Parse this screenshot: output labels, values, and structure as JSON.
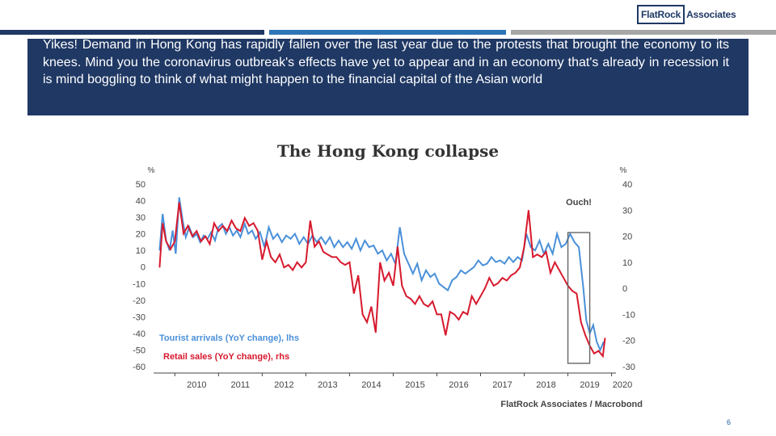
{
  "colors": {
    "bar_1": "#1f3864",
    "bar_2": "#2e75b6",
    "bar_3": "#a6a6a6",
    "banner": "#1f3864",
    "tourist_series": "#4a90d9",
    "retail_series": "#d7192d"
  },
  "logo": {
    "boxed_text": "FlatRock",
    "rest_text": "Associates"
  },
  "banner": {
    "text": "Yikes! Demand in Hong Kong has rapidly fallen over the last year due to the protests that brought the economy to its knees. Mind you the coronavirus outbreak's effects have yet to appear and in an economy that's already in recession it is mind boggling to think of what might happen to the financial capital of the Asian world"
  },
  "page_number": "6",
  "chart_data": {
    "type": "line",
    "title": "The Hong Kong collapse",
    "source": "FlatRock Associates / Macrobond",
    "left_unit": "%",
    "right_unit": "%",
    "left_axis": {
      "ticks": [
        50,
        40,
        30,
        20,
        10,
        0,
        -10,
        -20,
        -30,
        -40,
        -50,
        -60
      ],
      "ylim": [
        -60,
        50
      ]
    },
    "right_axis": {
      "ticks": [
        40,
        30,
        20,
        10,
        0,
        -10,
        -20,
        -30
      ],
      "ylim": [
        -30,
        40
      ]
    },
    "x_axis": {
      "ticks": [
        "2010",
        "2011",
        "2012",
        "2013",
        "2014",
        "2015",
        "2016",
        "2017",
        "2018",
        "2019",
        "2020"
      ],
      "xlim": [
        2009.55,
        2020.1
      ]
    },
    "legend_placement": "bottom-left",
    "annotation": {
      "text": "Ouch!",
      "x_range": [
        2019.0,
        2019.5
      ]
    },
    "series": [
      {
        "name": "Tourist arrivals (YoY change), lhs",
        "axis": "left",
        "points": [
          [
            2009.65,
            10
          ],
          [
            2009.72,
            32
          ],
          [
            2009.8,
            16
          ],
          [
            2009.88,
            10
          ],
          [
            2009.95,
            22
          ],
          [
            2010.02,
            8
          ],
          [
            2010.1,
            42
          ],
          [
            2010.18,
            28
          ],
          [
            2010.25,
            18
          ],
          [
            2010.33,
            24
          ],
          [
            2010.42,
            18
          ],
          [
            2010.5,
            20
          ],
          [
            2010.58,
            15
          ],
          [
            2010.66,
            19
          ],
          [
            2010.75,
            17
          ],
          [
            2010.83,
            21
          ],
          [
            2010.92,
            16
          ],
          [
            2011.0,
            24
          ],
          [
            2011.08,
            26
          ],
          [
            2011.17,
            20
          ],
          [
            2011.25,
            24
          ],
          [
            2011.33,
            19
          ],
          [
            2011.42,
            22
          ],
          [
            2011.5,
            18
          ],
          [
            2011.6,
            26
          ],
          [
            2011.68,
            20
          ],
          [
            2011.77,
            22
          ],
          [
            2011.85,
            17
          ],
          [
            2011.95,
            21
          ],
          [
            2012.05,
            12
          ],
          [
            2012.15,
            24
          ],
          [
            2012.25,
            17
          ],
          [
            2012.35,
            20
          ],
          [
            2012.45,
            15
          ],
          [
            2012.55,
            19
          ],
          [
            2012.65,
            17
          ],
          [
            2012.75,
            20
          ],
          [
            2012.85,
            14
          ],
          [
            2012.95,
            18
          ],
          [
            2013.05,
            14
          ],
          [
            2013.15,
            19
          ],
          [
            2013.25,
            15
          ],
          [
            2013.35,
            18
          ],
          [
            2013.45,
            14
          ],
          [
            2013.55,
            18
          ],
          [
            2013.65,
            12
          ],
          [
            2013.75,
            16
          ],
          [
            2013.85,
            12
          ],
          [
            2013.95,
            15
          ],
          [
            2014.05,
            11
          ],
          [
            2014.15,
            17
          ],
          [
            2014.25,
            10
          ],
          [
            2014.35,
            16
          ],
          [
            2014.45,
            12
          ],
          [
            2014.55,
            13
          ],
          [
            2014.65,
            8
          ],
          [
            2014.75,
            10
          ],
          [
            2014.85,
            4
          ],
          [
            2014.95,
            8
          ],
          [
            2015.05,
            2
          ],
          [
            2015.15,
            24
          ],
          [
            2015.25,
            8
          ],
          [
            2015.35,
            2
          ],
          [
            2015.45,
            -4
          ],
          [
            2015.55,
            2
          ],
          [
            2015.65,
            -8
          ],
          [
            2015.75,
            -2
          ],
          [
            2015.85,
            -6
          ],
          [
            2015.95,
            -4
          ],
          [
            2016.05,
            -10
          ],
          [
            2016.15,
            -12
          ],
          [
            2016.25,
            -14
          ],
          [
            2016.35,
            -8
          ],
          [
            2016.45,
            -6
          ],
          [
            2016.55,
            -2
          ],
          [
            2016.65,
            -4
          ],
          [
            2016.75,
            -2
          ],
          [
            2016.85,
            0
          ],
          [
            2016.95,
            4
          ],
          [
            2017.05,
            1
          ],
          [
            2017.15,
            2
          ],
          [
            2017.25,
            6
          ],
          [
            2017.35,
            3
          ],
          [
            2017.45,
            4
          ],
          [
            2017.55,
            2
          ],
          [
            2017.65,
            6
          ],
          [
            2017.75,
            3
          ],
          [
            2017.85,
            6
          ],
          [
            2017.95,
            4
          ],
          [
            2018.05,
            20
          ],
          [
            2018.15,
            12
          ],
          [
            2018.25,
            10
          ],
          [
            2018.35,
            16
          ],
          [
            2018.45,
            8
          ],
          [
            2018.55,
            14
          ],
          [
            2018.65,
            8
          ],
          [
            2018.75,
            20
          ],
          [
            2018.85,
            12
          ],
          [
            2018.95,
            14
          ],
          [
            2019.05,
            20
          ],
          [
            2019.15,
            15
          ],
          [
            2019.25,
            12
          ],
          [
            2019.35,
            -12
          ],
          [
            2019.42,
            -32
          ],
          [
            2019.5,
            -40
          ],
          [
            2019.58,
            -35
          ],
          [
            2019.66,
            -45
          ],
          [
            2019.74,
            -50
          ],
          [
            2019.82,
            -45
          ]
        ]
      },
      {
        "name": "Retail sales (YoY change), rhs",
        "axis": "right",
        "points": [
          [
            2009.65,
            8
          ],
          [
            2009.72,
            25
          ],
          [
            2009.8,
            18
          ],
          [
            2009.9,
            15
          ],
          [
            2010.0,
            18
          ],
          [
            2010.1,
            33
          ],
          [
            2010.2,
            21
          ],
          [
            2010.3,
            24
          ],
          [
            2010.4,
            20
          ],
          [
            2010.5,
            22
          ],
          [
            2010.6,
            18
          ],
          [
            2010.7,
            20
          ],
          [
            2010.8,
            17
          ],
          [
            2010.9,
            25
          ],
          [
            2011.0,
            22
          ],
          [
            2011.1,
            24
          ],
          [
            2011.2,
            22
          ],
          [
            2011.3,
            26
          ],
          [
            2011.4,
            23
          ],
          [
            2011.5,
            22
          ],
          [
            2011.6,
            27
          ],
          [
            2011.7,
            24
          ],
          [
            2011.8,
            25
          ],
          [
            2011.9,
            22
          ],
          [
            2012.0,
            11
          ],
          [
            2012.1,
            18
          ],
          [
            2012.2,
            12
          ],
          [
            2012.3,
            10
          ],
          [
            2012.4,
            13
          ],
          [
            2012.5,
            8
          ],
          [
            2012.6,
            9
          ],
          [
            2012.7,
            7
          ],
          [
            2012.8,
            10
          ],
          [
            2012.9,
            8
          ],
          [
            2013.0,
            10
          ],
          [
            2013.1,
            26
          ],
          [
            2013.2,
            16
          ],
          [
            2013.3,
            18
          ],
          [
            2013.4,
            14
          ],
          [
            2013.5,
            13
          ],
          [
            2013.6,
            12
          ],
          [
            2013.7,
            12
          ],
          [
            2013.8,
            10
          ],
          [
            2013.9,
            9
          ],
          [
            2014.0,
            10
          ],
          [
            2014.1,
            -2
          ],
          [
            2014.2,
            5
          ],
          [
            2014.3,
            -10
          ],
          [
            2014.4,
            -13
          ],
          [
            2014.5,
            -7
          ],
          [
            2014.6,
            -17
          ],
          [
            2014.7,
            10
          ],
          [
            2014.8,
            3
          ],
          [
            2014.9,
            6
          ],
          [
            2015.0,
            1
          ],
          [
            2015.1,
            16
          ],
          [
            2015.2,
            1
          ],
          [
            2015.3,
            -3
          ],
          [
            2015.4,
            -4
          ],
          [
            2015.5,
            -6
          ],
          [
            2015.6,
            -3
          ],
          [
            2015.7,
            -6
          ],
          [
            2015.8,
            -7
          ],
          [
            2015.9,
            -5
          ],
          [
            2016.0,
            -10
          ],
          [
            2016.1,
            -10
          ],
          [
            2016.2,
            -18
          ],
          [
            2016.3,
            -9
          ],
          [
            2016.4,
            -10
          ],
          [
            2016.5,
            -12
          ],
          [
            2016.6,
            -9
          ],
          [
            2016.7,
            -10
          ],
          [
            2016.8,
            -3
          ],
          [
            2016.9,
            -6
          ],
          [
            2017.0,
            -3
          ],
          [
            2017.1,
            0
          ],
          [
            2017.2,
            4
          ],
          [
            2017.3,
            1
          ],
          [
            2017.4,
            2
          ],
          [
            2017.5,
            4
          ],
          [
            2017.6,
            3
          ],
          [
            2017.7,
            5
          ],
          [
            2017.8,
            6
          ],
          [
            2017.9,
            8
          ],
          [
            2018.0,
            16
          ],
          [
            2018.1,
            30
          ],
          [
            2018.2,
            12
          ],
          [
            2018.3,
            13
          ],
          [
            2018.4,
            12
          ],
          [
            2018.5,
            14
          ],
          [
            2018.6,
            6
          ],
          [
            2018.7,
            10
          ],
          [
            2018.8,
            7
          ],
          [
            2018.9,
            4
          ],
          [
            2019.0,
            1
          ],
          [
            2019.1,
            -1
          ],
          [
            2019.2,
            -2
          ],
          [
            2019.3,
            -13
          ],
          [
            2019.4,
            -18
          ],
          [
            2019.5,
            -22
          ],
          [
            2019.6,
            -25
          ],
          [
            2019.7,
            -24
          ],
          [
            2019.8,
            -26
          ],
          [
            2019.85,
            -19
          ]
        ]
      }
    ]
  }
}
